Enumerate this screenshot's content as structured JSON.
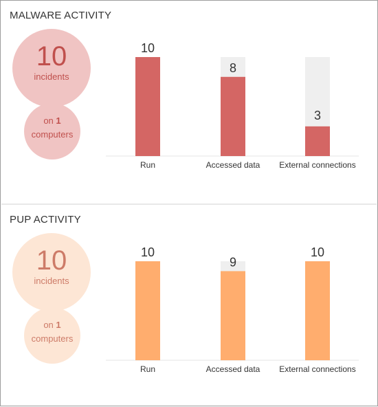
{
  "malware": {
    "title": "MALWARE ACTIVITY",
    "incidents_count": "10",
    "incidents_label": "incidents",
    "computers_prefix": "on",
    "computers_count": "1",
    "computers_label": "computers",
    "colors": {
      "bar": "#d46664",
      "track": "#efefef",
      "circle": "#f0c4c3",
      "text": "#c0504d"
    }
  },
  "pup": {
    "title": "PUP ACTIVITY",
    "incidents_count": "10",
    "incidents_label": "incidents",
    "computers_prefix": "on",
    "computers_count": "1",
    "computers_label": "computers",
    "colors": {
      "bar": "#ffad6e",
      "track": "#efefef",
      "circle": "#fde6d5",
      "text": "#cd7b68"
    }
  },
  "chart_data": [
    {
      "type": "bar",
      "categories": [
        "Run",
        "Accessed data",
        "External connections"
      ],
      "values": [
        10,
        8,
        3
      ],
      "ylim": [
        0,
        10
      ],
      "title": "MALWARE ACTIVITY",
      "data_labels": [
        "10",
        "8",
        "3"
      ]
    },
    {
      "type": "bar",
      "categories": [
        "Run",
        "Accessed data",
        "External connections"
      ],
      "values": [
        10,
        9,
        10
      ],
      "ylim": [
        0,
        10
      ],
      "title": "PUP ACTIVITY",
      "data_labels": [
        "10",
        "9",
        "10"
      ]
    }
  ]
}
